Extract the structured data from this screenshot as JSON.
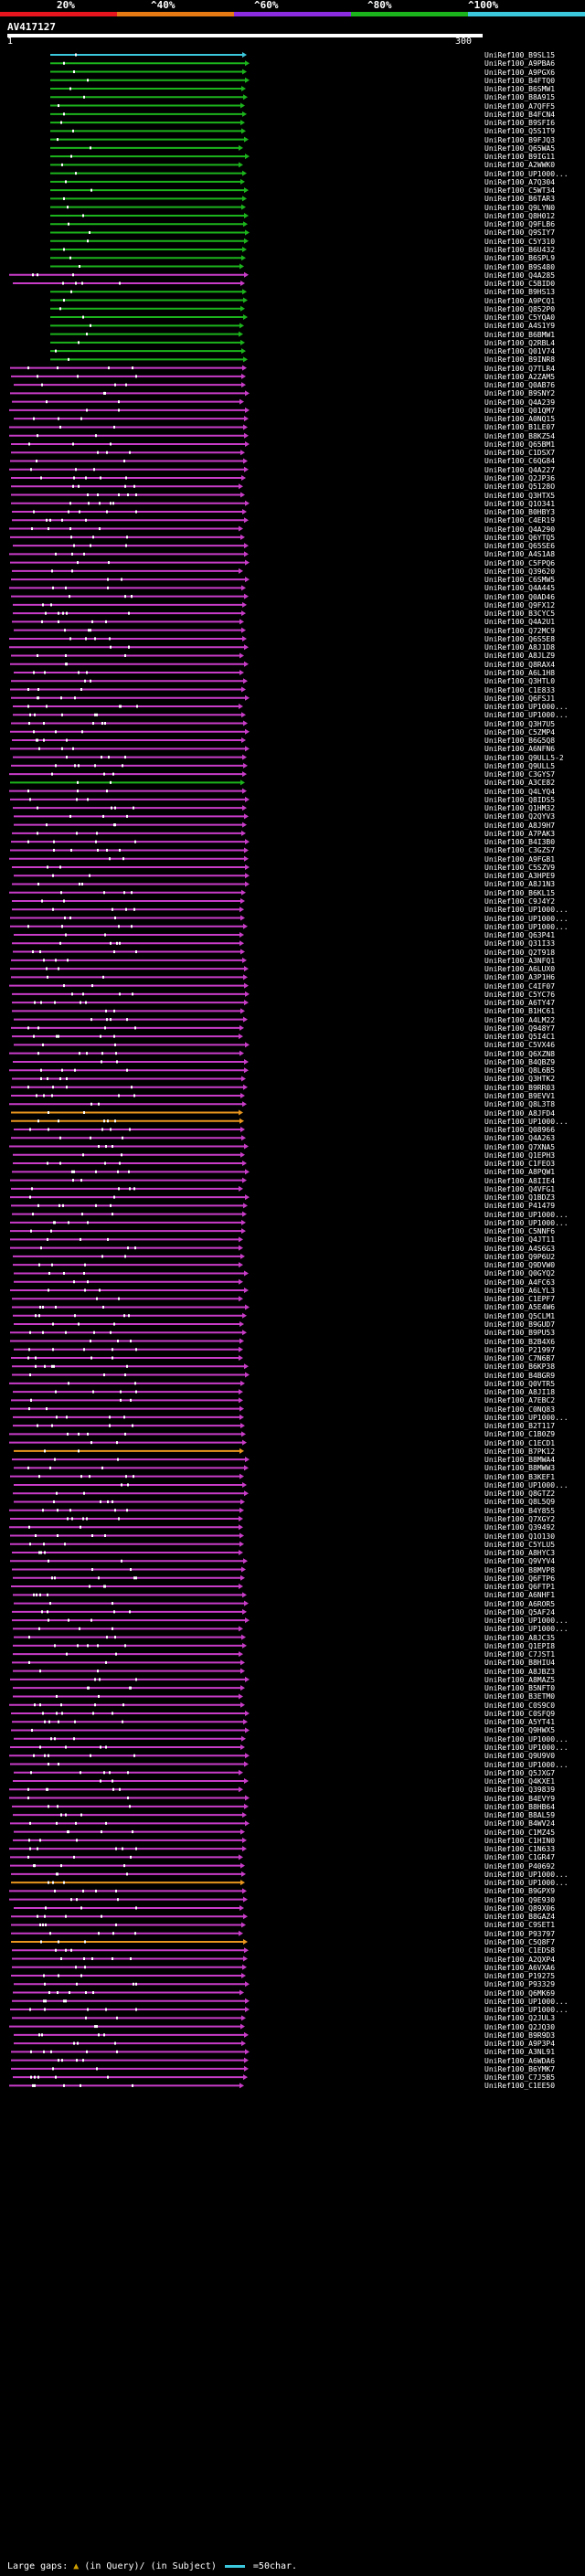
{
  "scale": {
    "labels": [
      "20%",
      "^40%",
      "^60%",
      "^80%",
      "^100%"
    ],
    "colors": [
      "#e8141e",
      "#e87a14",
      "#8c2ce0",
      "#1cb41c",
      "#3cc8dc"
    ]
  },
  "query": {
    "name": "AV417127",
    "start": "1",
    "end": "300"
  },
  "footer": {
    "large_gaps": "Large gaps:",
    "in_query": "(in Query)/",
    "in_subject": "(in Subject)",
    "scale_text": "=50char."
  },
  "hit_colors": {
    "cyan": "#3cc8dc",
    "green": "#1cb41c",
    "purple": "#c83cc8",
    "orange": "#e8961e",
    "marker": "#ffffff"
  },
  "hits": [
    {
      "label": "UniRef100_B9SL15",
      "color": "cyan"
    },
    {
      "label": "UniRef100_A9PBA6",
      "color": "green"
    },
    {
      "label": "UniRef100_A9PGX6",
      "color": "green"
    },
    {
      "label": "UniRef100_B4FTQ0",
      "color": "green"
    },
    {
      "label": "UniRef100_B6SMW1",
      "color": "green"
    },
    {
      "label": "UniRef100_B8A915",
      "color": "green"
    },
    {
      "label": "UniRef100_A7QFF5",
      "color": "green"
    },
    {
      "label": "UniRef100_B4FCN4",
      "color": "green"
    },
    {
      "label": "UniRef100_B9SFI6",
      "color": "green"
    },
    {
      "label": "UniRef100_Q5S1T9",
      "color": "green"
    },
    {
      "label": "UniRef100_B9FJQ3",
      "color": "green"
    },
    {
      "label": "UniRef100_Q65WA5",
      "color": "green"
    },
    {
      "label": "UniRef100_B9IG11",
      "color": "green"
    },
    {
      "label": "UniRef100_A2WWK0",
      "color": "green"
    },
    {
      "label": "UniRef100_UP1000...",
      "color": "green"
    },
    {
      "label": "UniRef100_A7Q304",
      "color": "green"
    },
    {
      "label": "UniRef100_C5WT34",
      "color": "green"
    },
    {
      "label": "UniRef100_B6TAR3",
      "color": "green"
    },
    {
      "label": "UniRef100_Q9LYN0",
      "color": "green"
    },
    {
      "label": "UniRef100_Q8H012",
      "color": "green"
    },
    {
      "label": "UniRef100_Q9FLB6",
      "color": "green"
    },
    {
      "label": "UniRef100_Q9SIY7",
      "color": "green"
    },
    {
      "label": "UniRef100_C5Y310",
      "color": "green"
    },
    {
      "label": "UniRef100_B6U432",
      "color": "green"
    },
    {
      "label": "UniRef100_B6SPL9",
      "color": "green"
    },
    {
      "label": "UniRef100_B9S480",
      "color": "green"
    },
    {
      "label": "UniRef100_Q4A285",
      "color": "purple"
    },
    {
      "label": "UniRef100_C5BID0",
      "color": "purple"
    },
    {
      "label": "UniRef100_B9HS13",
      "color": "green"
    },
    {
      "label": "UniRef100_A9PCQ1",
      "color": "green"
    },
    {
      "label": "UniRef100_Q852P0",
      "color": "green"
    },
    {
      "label": "UniRef100_C5YQA0",
      "color": "green"
    },
    {
      "label": "UniRef100_A4S1Y9",
      "color": "green"
    },
    {
      "label": "UniRef100_B6BMW1",
      "color": "green"
    },
    {
      "label": "UniRef100_Q2RBL4",
      "color": "green"
    },
    {
      "label": "UniRef100_Q01V74",
      "color": "green"
    },
    {
      "label": "UniRef100_B9INR8",
      "color": "green"
    },
    {
      "label": "UniRef100_Q7TLR4",
      "color": "purple"
    },
    {
      "label": "UniRef100_A2ZAM5",
      "color": "purple"
    },
    {
      "label": "UniRef100_Q0AB76",
      "color": "purple"
    },
    {
      "label": "UniRef100_B9SNY2",
      "color": "purple"
    },
    {
      "label": "UniRef100_Q4A239",
      "color": "purple"
    },
    {
      "label": "UniRef100_Q01QM7",
      "color": "purple"
    },
    {
      "label": "UniRef100_A0NQ15",
      "color": "purple"
    },
    {
      "label": "UniRef100_B1LE07",
      "color": "purple"
    },
    {
      "label": "UniRef100_B8KZ54",
      "color": "purple"
    },
    {
      "label": "UniRef100_Q65BM1",
      "color": "purple"
    },
    {
      "label": "UniRef100_C1DSX7",
      "color": "purple"
    },
    {
      "label": "UniRef100_C6QG84",
      "color": "purple"
    },
    {
      "label": "UniRef100_Q4A227",
      "color": "purple"
    },
    {
      "label": "UniRef100_Q2JP36",
      "color": "purple"
    },
    {
      "label": "UniRef100_Q5128O",
      "color": "purple"
    },
    {
      "label": "UniRef100_Q3HTX5",
      "color": "purple"
    },
    {
      "label": "UniRef100_Q1O341",
      "color": "purple"
    },
    {
      "label": "UniRef100_B0HBY3",
      "color": "purple"
    },
    {
      "label": "UniRef100_C4ER19",
      "color": "purple"
    },
    {
      "label": "UniRef100_Q4A290",
      "color": "purple"
    },
    {
      "label": "UniRef100_Q6YTQ5",
      "color": "purple"
    },
    {
      "label": "UniRef100_Q65SE6",
      "color": "purple"
    },
    {
      "label": "UniRef100_A4S1A8",
      "color": "purple"
    },
    {
      "label": "UniRef100_C5FPQ6",
      "color": "purple"
    },
    {
      "label": "UniRef100_Q39620",
      "color": "purple"
    },
    {
      "label": "UniRef100_C6SMW5",
      "color": "purple"
    },
    {
      "label": "UniRef100_Q4A445",
      "color": "purple"
    },
    {
      "label": "UniRef100_Q0AD46",
      "color": "purple"
    },
    {
      "label": "UniRef100_Q9FX12",
      "color": "purple"
    },
    {
      "label": "UniRef100_B3CYC5",
      "color": "purple"
    },
    {
      "label": "UniRef100_Q4A2U1",
      "color": "purple"
    },
    {
      "label": "UniRef100_Q72MC9",
      "color": "purple"
    },
    {
      "label": "UniRef100_Q6S5E8",
      "color": "purple"
    },
    {
      "label": "UniRef100_A8J1D8",
      "color": "purple"
    },
    {
      "label": "UniRef100_A8JLZ9",
      "color": "purple"
    },
    {
      "label": "UniRef100_Q8RAX4",
      "color": "purple"
    },
    {
      "label": "UniRef100_A6L1H8",
      "color": "purple"
    },
    {
      "label": "UniRef100_Q3HTL0",
      "color": "purple"
    },
    {
      "label": "UniRef100_C1E833",
      "color": "purple"
    },
    {
      "label": "UniRef100_Q6FSJ1",
      "color": "purple"
    },
    {
      "label": "UniRef100_UP1000...",
      "color": "purple"
    },
    {
      "label": "UniRef100_UP1000...",
      "color": "purple"
    },
    {
      "label": "UniRef100_Q3H7U5",
      "color": "purple"
    },
    {
      "label": "UniRef100_C5ZMP4",
      "color": "purple"
    },
    {
      "label": "UniRef100_B6G5Q8",
      "color": "purple"
    },
    {
      "label": "UniRef100_A6NFN6",
      "color": "purple"
    },
    {
      "label": "UniRef100_Q9ULL5-2",
      "color": "purple"
    },
    {
      "label": "UniRef100_Q9ULL5",
      "color": "purple"
    },
    {
      "label": "UniRef100_C3GYS7",
      "color": "purple"
    },
    {
      "label": "UniRef100_A3CE82",
      "color": "green"
    },
    {
      "label": "UniRef100_Q4LYQ4",
      "color": "purple"
    },
    {
      "label": "UniRef100_Q8IDS5",
      "color": "purple"
    },
    {
      "label": "UniRef100_Q1HM32",
      "color": "purple"
    },
    {
      "label": "UniRef100_Q2QYV3",
      "color": "purple"
    },
    {
      "label": "UniRef100_A8J9H7",
      "color": "purple"
    },
    {
      "label": "UniRef100_A7PAK3",
      "color": "purple"
    },
    {
      "label": "UniRef100_B4I3B0",
      "color": "purple"
    },
    {
      "label": "UniRef100_C3GZS7",
      "color": "purple"
    },
    {
      "label": "UniRef100_A9FGB1",
      "color": "purple"
    },
    {
      "label": "UniRef100_C5SZV9",
      "color": "purple"
    },
    {
      "label": "UniRef100_A3HPE9",
      "color": "purple"
    },
    {
      "label": "UniRef100_A8J1N3",
      "color": "purple"
    },
    {
      "label": "UniRef100_B6KL15",
      "color": "purple"
    },
    {
      "label": "UniRef100_C9J4Y2",
      "color": "purple"
    },
    {
      "label": "UniRef100_UP1000...",
      "color": "purple"
    },
    {
      "label": "UniRef100_UP1000...",
      "color": "purple"
    },
    {
      "label": "UniRef100_UP1000...",
      "color": "purple"
    },
    {
      "label": "UniRef100_Q63P41",
      "color": "purple"
    },
    {
      "label": "UniRef100_Q31I33",
      "color": "purple"
    },
    {
      "label": "UniRef100_Q2T918",
      "color": "purple"
    },
    {
      "label": "UniRef100_A3NFQ1",
      "color": "purple"
    },
    {
      "label": "UniRef100_A6LUX0",
      "color": "purple"
    },
    {
      "label": "UniRef100_A3P1H6",
      "color": "purple"
    },
    {
      "label": "UniRef100_C4IF07",
      "color": "purple"
    },
    {
      "label": "UniRef100_C5YC76",
      "color": "purple"
    },
    {
      "label": "UniRef100_A6TY47",
      "color": "purple"
    },
    {
      "label": "UniRef100_B1HC61",
      "color": "purple"
    },
    {
      "label": "UniRef100_A4LM22",
      "color": "purple"
    },
    {
      "label": "UniRef100_Q948Y7",
      "color": "purple"
    },
    {
      "label": "UniRef100_Q5I4C1",
      "color": "purple"
    },
    {
      "label": "UniRef100_C5VX46",
      "color": "purple"
    },
    {
      "label": "UniRef100_Q6XZN8",
      "color": "purple"
    },
    {
      "label": "UniRef100_B4QBZ9",
      "color": "purple"
    },
    {
      "label": "UniRef100_Q8L6B5",
      "color": "purple"
    },
    {
      "label": "UniRef100_Q3HTK2",
      "color": "purple"
    },
    {
      "label": "UniRef100_B9RR03",
      "color": "purple"
    },
    {
      "label": "UniRef100_B9EVV1",
      "color": "purple"
    },
    {
      "label": "UniRef100_Q8L3T8",
      "color": "purple"
    },
    {
      "label": "UniRef100_A8JFD4",
      "color": "orange"
    },
    {
      "label": "UniRef100_UP1000...",
      "color": "orange"
    },
    {
      "label": "UniRef100_Q08966",
      "color": "purple"
    },
    {
      "label": "UniRef100_Q4A263",
      "color": "purple"
    },
    {
      "label": "UniRef100_Q7XNA5",
      "color": "purple"
    },
    {
      "label": "UniRef100_Q1EPH3",
      "color": "purple"
    },
    {
      "label": "UniRef100_C1FEO3",
      "color": "purple"
    },
    {
      "label": "UniRef100_A8PQW1",
      "color": "purple"
    },
    {
      "label": "UniRef100_A8IIE4",
      "color": "purple"
    },
    {
      "label": "UniRef100_Q4VFG1",
      "color": "purple"
    },
    {
      "label": "UniRef100_Q1BDZ3",
      "color": "purple"
    },
    {
      "label": "UniRef100_P41479",
      "color": "purple"
    },
    {
      "label": "UniRef100_UP1000...",
      "color": "purple"
    },
    {
      "label": "UniRef100_UP1000...",
      "color": "purple"
    },
    {
      "label": "UniRef100_C5NNF6",
      "color": "purple"
    },
    {
      "label": "UniRef100_Q4JT11",
      "color": "purple"
    },
    {
      "label": "UniRef100_A4S6G3",
      "color": "purple"
    },
    {
      "label": "UniRef100_Q9P6U2",
      "color": "purple"
    },
    {
      "label": "UniRef100_Q9DVW0",
      "color": "purple"
    },
    {
      "label": "UniRef100_Q0GYQ2",
      "color": "purple"
    },
    {
      "label": "UniRef100_A4FC63",
      "color": "purple"
    },
    {
      "label": "UniRef100_A6LYL3",
      "color": "purple"
    },
    {
      "label": "UniRef100_C1EPF7",
      "color": "purple"
    },
    {
      "label": "UniRef100_A5E4W6",
      "color": "purple"
    },
    {
      "label": "UniRef100_Q5CLM1",
      "color": "purple"
    },
    {
      "label": "UniRef100_B9GUD7",
      "color": "purple"
    },
    {
      "label": "UniRef100_B9PU53",
      "color": "purple"
    },
    {
      "label": "UniRef100_B2B4X6",
      "color": "purple"
    },
    {
      "label": "UniRef100_P21997",
      "color": "purple"
    },
    {
      "label": "UniRef100_C7N6B7",
      "color": "purple"
    },
    {
      "label": "UniRef100_B6KP38",
      "color": "purple"
    },
    {
      "label": "UniRef100_B4BGR9",
      "color": "purple"
    },
    {
      "label": "UniRef100_Q0VTR5",
      "color": "purple"
    },
    {
      "label": "UniRef100_A8JI18",
      "color": "purple"
    },
    {
      "label": "UniRef100_A7EBC2",
      "color": "purple"
    },
    {
      "label": "UniRef100_C0NQ83",
      "color": "purple"
    },
    {
      "label": "UniRef100_UP1000...",
      "color": "purple"
    },
    {
      "label": "UniRef100_B2T117",
      "color": "purple"
    },
    {
      "label": "UniRef100_C1B0Z9",
      "color": "purple"
    },
    {
      "label": "UniRef100_C1ECD1",
      "color": "purple"
    },
    {
      "label": "UniRef100_B7PK12",
      "color": "orange"
    },
    {
      "label": "UniRef100_B8MWA4",
      "color": "purple"
    },
    {
      "label": "UniRef100_B8MWW3",
      "color": "purple"
    },
    {
      "label": "UniRef100_B3KEF1",
      "color": "purple"
    },
    {
      "label": "UniRef100_UP1000...",
      "color": "purple"
    },
    {
      "label": "UniRef100_Q8GTZ2",
      "color": "purple"
    },
    {
      "label": "UniRef100_Q8L5Q9",
      "color": "purple"
    },
    {
      "label": "UniRef100_B4Y855",
      "color": "purple"
    },
    {
      "label": "UniRef100_Q7XGY2",
      "color": "purple"
    },
    {
      "label": "UniRef100_Q39492",
      "color": "purple"
    },
    {
      "label": "UniRef100_Q1O130",
      "color": "purple"
    },
    {
      "label": "UniRef100_C5YLU5",
      "color": "purple"
    },
    {
      "label": "UniRef100_A8HYC3",
      "color": "purple"
    },
    {
      "label": "UniRef100_Q9VYV4",
      "color": "purple"
    },
    {
      "label": "UniRef100_B8MVP8",
      "color": "purple"
    },
    {
      "label": "UniRef100_Q6FTP6",
      "color": "purple"
    },
    {
      "label": "UniRef100_Q6FTP1",
      "color": "purple"
    },
    {
      "label": "UniRef100_A6NHF1",
      "color": "purple"
    },
    {
      "label": "UniRef100_A6ROR5",
      "color": "purple"
    },
    {
      "label": "UniRef100_Q5AF24",
      "color": "purple"
    },
    {
      "label": "UniRef100_UP1000...",
      "color": "purple"
    },
    {
      "label": "UniRef100_UP1000...",
      "color": "purple"
    },
    {
      "label": "UniRef100_A8JC35",
      "color": "purple"
    },
    {
      "label": "UniRef100_Q1EPI8",
      "color": "purple"
    },
    {
      "label": "UniRef100_C7JST1",
      "color": "purple"
    },
    {
      "label": "UniRef100_B8HIU4",
      "color": "purple"
    },
    {
      "label": "UniRef100_A8JBZ3",
      "color": "purple"
    },
    {
      "label": "UniRef100_A8MAZ5",
      "color": "purple"
    },
    {
      "label": "UniRef100_B5NFT0",
      "color": "purple"
    },
    {
      "label": "UniRef100_B3ETM0",
      "color": "purple"
    },
    {
      "label": "UniRef100_C0S9C0",
      "color": "purple"
    },
    {
      "label": "UniRef100_C0SFQ9",
      "color": "purple"
    },
    {
      "label": "UniRef100_A5YT41",
      "color": "purple"
    },
    {
      "label": "UniRef100_Q9HWX5",
      "color": "purple"
    },
    {
      "label": "UniRef100_UP1000...",
      "color": "purple"
    },
    {
      "label": "UniRef100_UP1000...",
      "color": "purple"
    },
    {
      "label": "UniRef100_Q9U9V0",
      "color": "purple"
    },
    {
      "label": "UniRef100_UP1000...",
      "color": "purple"
    },
    {
      "label": "UniRef100_Q5JXG7",
      "color": "purple"
    },
    {
      "label": "UniRef100_Q4KXE1",
      "color": "purple"
    },
    {
      "label": "UniRef100_Q39839",
      "color": "purple"
    },
    {
      "label": "UniRef100_B4EVY9",
      "color": "purple"
    },
    {
      "label": "UniRef100_B8HB64",
      "color": "purple"
    },
    {
      "label": "UniRef100_B8AL59",
      "color": "purple"
    },
    {
      "label": "UniRef100_B4WV24",
      "color": "purple"
    },
    {
      "label": "UniRef100_C1MZ45",
      "color": "purple"
    },
    {
      "label": "UniRef100_C1HIN0",
      "color": "purple"
    },
    {
      "label": "UniRef100_C1N633",
      "color": "purple"
    },
    {
      "label": "UniRef100_C1GR47",
      "color": "purple"
    },
    {
      "label": "UniRef100_P40692",
      "color": "purple"
    },
    {
      "label": "UniRef100_UP1000...",
      "color": "purple"
    },
    {
      "label": "UniRef100_UP1000...",
      "color": "orange"
    },
    {
      "label": "UniRef100_B9GPX9",
      "color": "purple"
    },
    {
      "label": "UniRef100_Q9E930",
      "color": "purple"
    },
    {
      "label": "UniRef100_Q89X06",
      "color": "purple"
    },
    {
      "label": "UniRef100_B8GAZ4",
      "color": "purple"
    },
    {
      "label": "UniRef100_C9SET1",
      "color": "purple"
    },
    {
      "label": "UniRef100_P93797",
      "color": "purple"
    },
    {
      "label": "UniRef100_C5Q8F7",
      "color": "orange"
    },
    {
      "label": "UniRef100_C1EDS8",
      "color": "purple"
    },
    {
      "label": "UniRef100_A2QXP4",
      "color": "purple"
    },
    {
      "label": "UniRef100_A6VXA6",
      "color": "purple"
    },
    {
      "label": "UniRef100_P19275",
      "color": "purple"
    },
    {
      "label": "UniRef100_P93329",
      "color": "purple"
    },
    {
      "label": "UniRef100_Q6MK69",
      "color": "purple"
    },
    {
      "label": "UniRef100_UP1000...",
      "color": "purple"
    },
    {
      "label": "UniRef100_UP1000...",
      "color": "purple"
    },
    {
      "label": "UniRef100_Q2JUL3",
      "color": "purple"
    },
    {
      "label": "UniRef100_Q2JQ30",
      "color": "purple"
    },
    {
      "label": "UniRef100_B9R9D3",
      "color": "purple"
    },
    {
      "label": "UniRef100_A9P3P4",
      "color": "purple"
    },
    {
      "label": "UniRef100_A3NL91",
      "color": "purple"
    },
    {
      "label": "UniRef100_A6WDA6",
      "color": "purple"
    },
    {
      "label": "UniRef100_B6YMK7",
      "color": "purple"
    },
    {
      "label": "UniRef100_C7J5B5",
      "color": "purple"
    },
    {
      "label": "UniRef100_C1EE50",
      "color": "purple"
    }
  ]
}
